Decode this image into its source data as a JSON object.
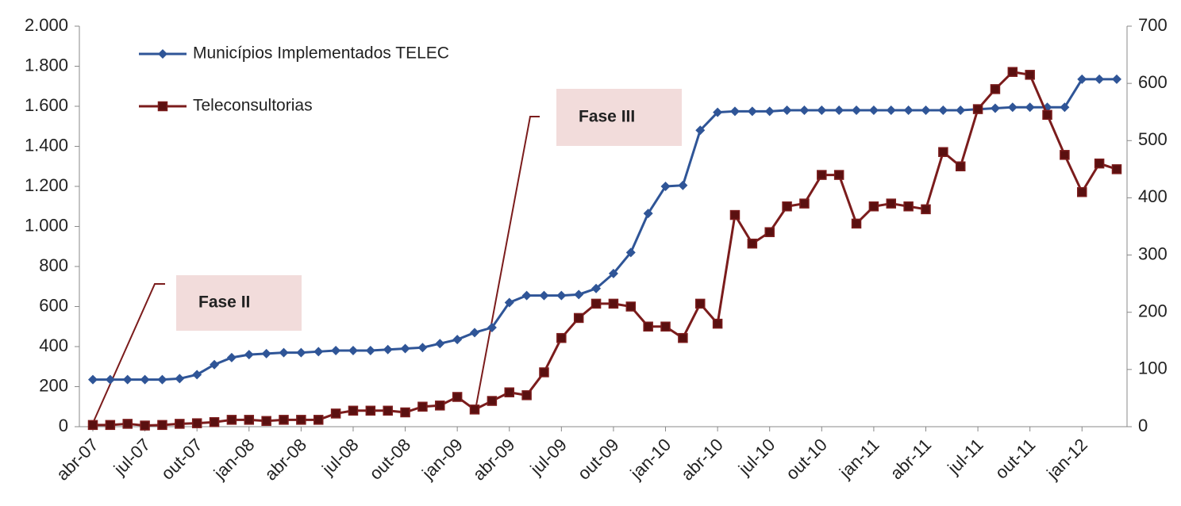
{
  "chart_data": {
    "type": "line",
    "categories": [
      "abr-07",
      null,
      null,
      "jul-07",
      null,
      null,
      "out-07",
      null,
      null,
      "jan-08",
      null,
      null,
      "abr-08",
      null,
      null,
      "jul-08",
      null,
      null,
      "out-08",
      null,
      null,
      "jan-09",
      null,
      null,
      "abr-09",
      null,
      null,
      "jul-09",
      null,
      null,
      "out-09",
      null,
      null,
      "jan-10",
      null,
      null,
      "abr-10",
      null,
      null,
      "jul-10",
      null,
      null,
      "out-10",
      null,
      null,
      "jan-11",
      null,
      null,
      "abr-11",
      null,
      null,
      "jul-11",
      null,
      null,
      "out-11",
      null,
      null,
      "jan-12",
      null,
      null
    ],
    "series": [
      {
        "name": "Municípios Implementados TELEC",
        "color": "#2f5597",
        "marker": "diamond",
        "values": [
          235,
          235,
          235,
          235,
          235,
          240,
          260,
          310,
          345,
          360,
          365,
          370,
          370,
          375,
          380,
          380,
          380,
          385,
          390,
          395,
          415,
          435,
          470,
          495,
          620,
          655,
          655,
          655,
          660,
          690,
          765,
          870,
          1065,
          1200,
          1205,
          1480,
          1570,
          1575,
          1575,
          1575,
          1580,
          1580,
          1580,
          1580,
          1580,
          1580,
          1580,
          1580,
          1580,
          1580,
          1580,
          1585,
          1590,
          1595,
          1595,
          1595,
          1595,
          1735,
          1735,
          1735
        ]
      },
      {
        "name": "Teleconsultorias",
        "color": "#7b1c1c",
        "marker": "square",
        "axis": "y2",
        "values": [
          3,
          3,
          5,
          2,
          3,
          5,
          6,
          8,
          12,
          12,
          10,
          12,
          12,
          12,
          23,
          28,
          28,
          28,
          25,
          35,
          37,
          52,
          30,
          45,
          60,
          55,
          95,
          155,
          190,
          215,
          215,
          210,
          175,
          175,
          155,
          215,
          180,
          370,
          320,
          340,
          385,
          390,
          440,
          440,
          355,
          385,
          390,
          385,
          380,
          480,
          455,
          555,
          590,
          620,
          615,
          545,
          475,
          410,
          460,
          450
        ]
      }
    ],
    "ylim": [
      0,
      2000
    ],
    "yticks": [
      0,
      200,
      400,
      600,
      800,
      {
        "value": 1000,
        "label": "1.000"
      },
      {
        "value": 1200,
        "label": "1.200"
      },
      {
        "value": 1400,
        "label": "1.400"
      },
      {
        "value": 1600,
        "label": "1.600"
      },
      {
        "value": 1800,
        "label": "1.800"
      },
      {
        "value": 2000,
        "label": "2.000"
      }
    ],
    "y2lim": [
      0,
      700
    ],
    "y2ticks": [
      0,
      100,
      200,
      300,
      400,
      500,
      600,
      700
    ],
    "legend": "upper left",
    "annotations": [
      {
        "text": "Fase II"
      },
      {
        "text": "Fase III"
      }
    ]
  }
}
